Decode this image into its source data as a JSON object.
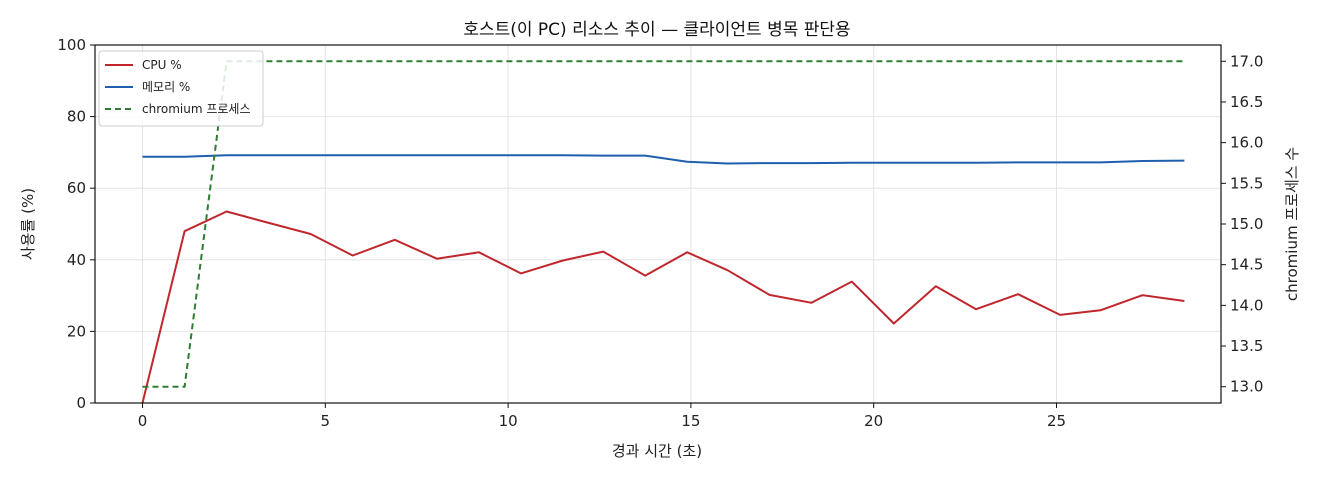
{
  "chart_data": {
    "type": "line",
    "title": "호스트(이 PC) 리소스 추이 — 클라이언트 병목 판단용",
    "xlabel": "경과 시간 (초)",
    "ylabel": "사용률 (%)",
    "y2label": "chromium 프로세스 수",
    "xlim": [
      -1.3,
      29.5
    ],
    "ylim": [
      0,
      100
    ],
    "y2lim": [
      12.8,
      17.2
    ],
    "xticks": [
      0,
      5,
      10,
      15,
      20,
      25
    ],
    "yticks": [
      0,
      20,
      40,
      60,
      80,
      100
    ],
    "y2ticks": [
      13.0,
      13.5,
      14.0,
      14.5,
      15.0,
      15.5,
      16.0,
      16.5,
      17.0
    ],
    "xtick_labels": [
      "0",
      "5",
      "10",
      "15",
      "20",
      "25"
    ],
    "ytick_labels": [
      "0",
      "20",
      "40",
      "60",
      "80",
      "100"
    ],
    "y2tick_labels": [
      "13.0",
      "13.5",
      "14.0",
      "14.5",
      "15.0",
      "15.5",
      "16.0",
      "16.5",
      "17.0"
    ],
    "grid": true,
    "legend_position": "top-left",
    "series": [
      {
        "name": "CPU %",
        "axis": "left",
        "color": "#c0272d",
        "style": "solid",
        "x": [
          0,
          1.15,
          2.3,
          3.45,
          4.6,
          5.75,
          6.9,
          8.05,
          9.2,
          10.35,
          11.5,
          12.6,
          13.75,
          14.9,
          16.0,
          17.15,
          18.3,
          19.4,
          20.55,
          21.7,
          22.8,
          23.95,
          25.1,
          26.2,
          27.35,
          28.5
        ],
        "values": [
          0,
          48,
          53.5,
          50.3,
          47.2,
          41.2,
          45.6,
          40.3,
          42.1,
          36.2,
          39.8,
          42.3,
          35.6,
          42.1,
          37.1,
          30.2,
          28.0,
          33.9,
          22.2,
          32.6,
          26.2,
          30.4,
          24.6,
          25.9,
          30.1,
          28.5
        ]
      },
      {
        "name": "메모리 %",
        "axis": "left",
        "color": "#1f5fae",
        "style": "solid",
        "x": [
          0,
          1.15,
          2.3,
          3.45,
          4.6,
          5.75,
          6.9,
          8.05,
          9.2,
          10.35,
          11.5,
          12.6,
          13.75,
          14.9,
          16.0,
          17.15,
          18.3,
          19.4,
          20.55,
          21.7,
          22.8,
          23.95,
          25.1,
          26.2,
          27.35,
          28.5
        ],
        "values": [
          68.8,
          68.8,
          69.2,
          69.2,
          69.2,
          69.2,
          69.2,
          69.2,
          69.2,
          69.2,
          69.2,
          69.1,
          69.1,
          67.4,
          66.9,
          67.0,
          67.0,
          67.1,
          67.1,
          67.1,
          67.1,
          67.2,
          67.2,
          67.2,
          67.6,
          67.7
        ]
      },
      {
        "name": "chromium 프로세스",
        "axis": "right",
        "color": "#2e7d32",
        "style": "dashed",
        "x": [
          0,
          1.15,
          2.3,
          3.45,
          4.6,
          5.75,
          6.9,
          8.05,
          9.2,
          10.35,
          11.5,
          12.6,
          13.75,
          14.9,
          16.0,
          17.15,
          18.3,
          19.4,
          20.55,
          21.7,
          22.8,
          23.95,
          25.1,
          26.2,
          27.35,
          28.5
        ],
        "values": [
          13,
          13,
          17,
          17,
          17,
          17,
          17,
          17,
          17,
          17,
          17,
          17,
          17,
          17,
          17,
          17,
          17,
          17,
          17,
          17,
          17,
          17,
          17,
          17,
          17,
          17
        ]
      }
    ]
  }
}
